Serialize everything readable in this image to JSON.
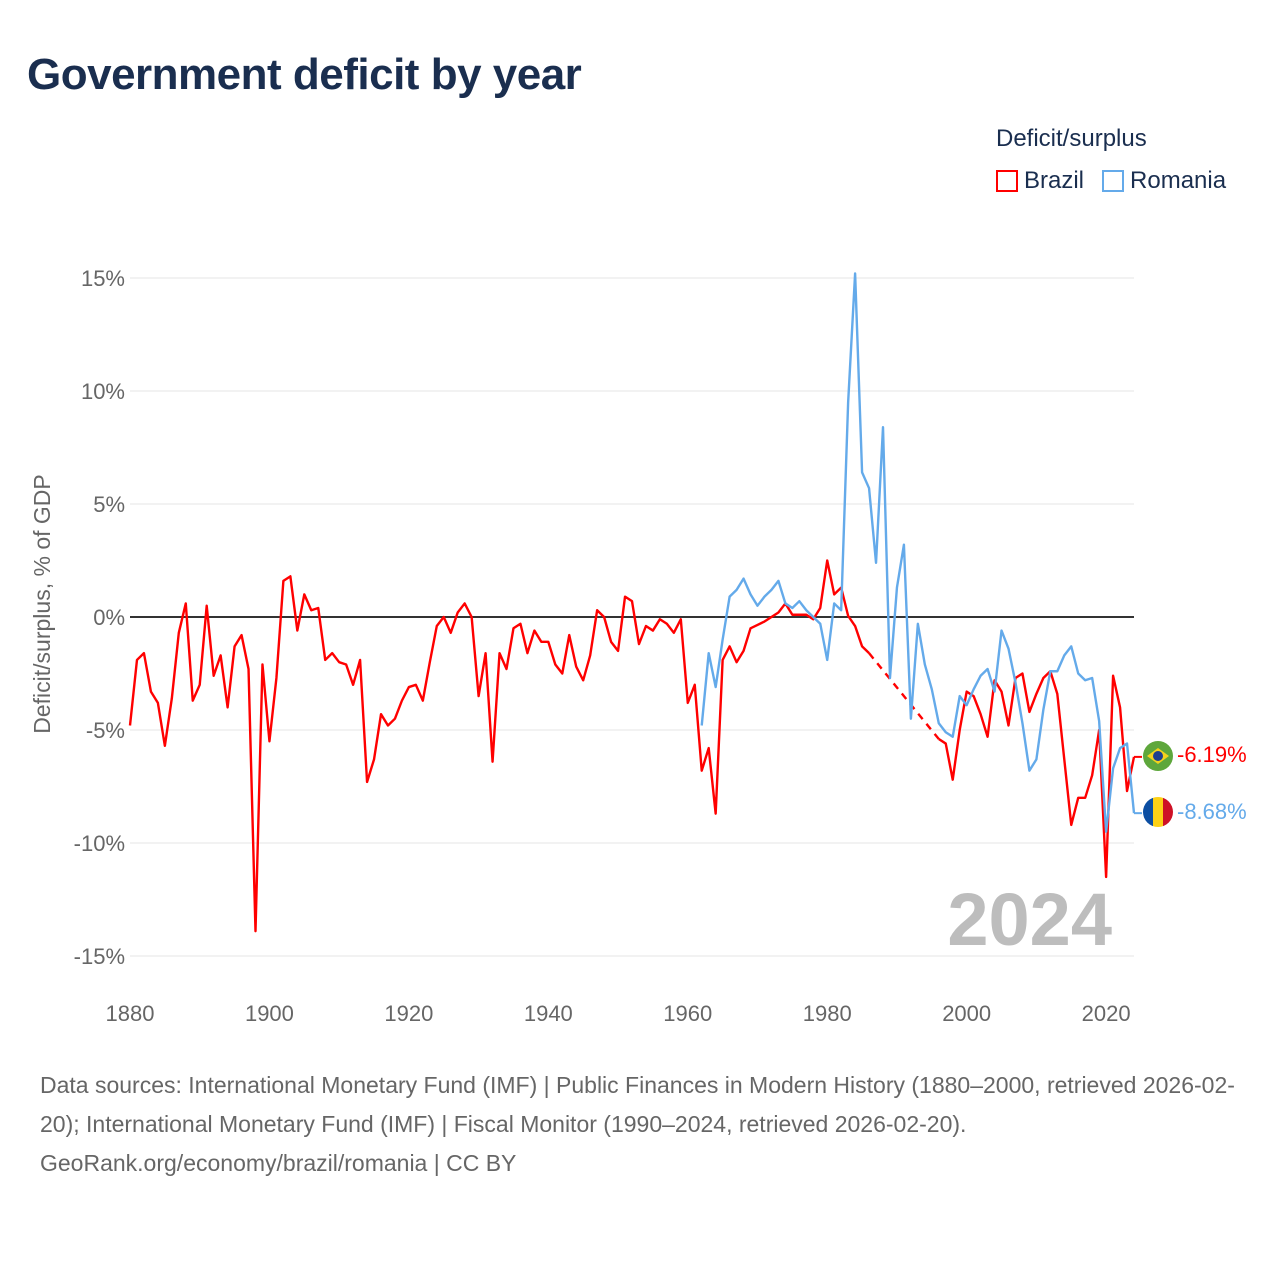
{
  "title": "Government deficit by year",
  "legend": {
    "title": "Deficit/surplus",
    "items": [
      {
        "label": "Brazil",
        "color": "#ff0000"
      },
      {
        "label": "Romania",
        "color": "#64aaea"
      }
    ]
  },
  "year_watermark": "2024",
  "end_labels": {
    "brazil": "-6.19%",
    "romania": "-8.68%"
  },
  "footer": {
    "sources": "Data sources: International Monetary Fund (IMF) | Public Finances in Modern History (1880–2000, retrieved 2026-02-20); International Monetary Fund (IMF) | Fiscal Monitor (1990–2024, retrieved 2026-02-20).",
    "credit": "GeoRank.org/economy/brazil/romania | CC BY"
  },
  "chart_data": {
    "type": "line",
    "title": "Government deficit by year",
    "xlabel": "",
    "ylabel": "Deficit/surplus, % of GDP",
    "xlim": [
      1880,
      2024
    ],
    "ylim": [
      -15,
      15
    ],
    "x_ticks": [
      1880,
      1900,
      1920,
      1940,
      1960,
      1980,
      2000,
      2020
    ],
    "x_tick_labels": [
      "1880",
      "1900",
      "1920",
      "1940",
      "1960",
      "1980",
      "2000",
      "2020"
    ],
    "y_ticks": [
      15,
      10,
      5,
      0,
      -5,
      -10,
      -15
    ],
    "y_tick_labels": [
      "15%",
      "10%",
      "5%",
      "0%",
      "-5%",
      "-10%",
      "-15%"
    ],
    "grid": true,
    "legend_position": "top-right",
    "series": [
      {
        "name": "Brazil",
        "color": "#ff0000",
        "start_year": 1880,
        "values": [
          -4.8,
          -1.9,
          -1.6,
          -3.3,
          -3.8,
          -5.7,
          -3.6,
          -0.7,
          0.6,
          -3.7,
          -3.0,
          0.5,
          -2.6,
          -1.7,
          -4.0,
          -1.3,
          -0.8,
          -2.3,
          -13.9,
          -2.1,
          -5.5,
          -2.7,
          1.6,
          1.8,
          -0.6,
          1.0,
          0.3,
          0.4,
          -1.9,
          -1.6,
          -2.0,
          -2.1,
          -3.0,
          -1.9,
          -7.3,
          -6.3,
          -4.3,
          -4.8,
          -4.5,
          -3.7,
          -3.1,
          -3.0,
          -3.7,
          -2.0,
          -0.4,
          0.0,
          -0.7,
          0.2,
          0.6,
          0.0,
          -3.5,
          -1.6,
          -6.4,
          -1.6,
          -2.3,
          -0.5,
          -0.3,
          -1.6,
          -0.6,
          -1.1,
          -1.1,
          -2.1,
          -2.5,
          -0.8,
          -2.2,
          -2.8,
          -1.7,
          0.3,
          0.0,
          -1.1,
          -1.5,
          0.9,
          0.7,
          -1.2,
          -0.4,
          -0.6,
          -0.1,
          -0.3,
          -0.7,
          -0.1,
          -3.8,
          -3.0,
          -6.8,
          -5.8,
          -8.7,
          -1.9,
          -1.3,
          -2.0,
          -1.5,
          -0.5,
          -0.35,
          -0.2,
          0.0,
          0.2,
          0.6,
          0.1,
          0.1,
          0.1,
          -0.1,
          0.4,
          2.5,
          1.0,
          1.3,
          0.05,
          -0.4,
          -1.3,
          -1.6,
          null,
          null,
          null,
          null,
          null,
          null,
          null,
          null,
          null,
          -5.4,
          -5.6,
          -7.2,
          -5.0,
          -3.3,
          -3.5,
          -4.3,
          -5.3,
          -2.8,
          -3.3,
          -4.8,
          -2.7,
          -2.5,
          -4.2,
          -3.4,
          -2.7,
          -2.4,
          -3.4,
          -6.3,
          -9.2,
          -8.0,
          -8.0,
          -7.0,
          -5.0,
          -11.5,
          -2.6,
          -4.0,
          -7.7,
          -6.19
        ]
      },
      {
        "name": "Romania",
        "color": "#64aaea",
        "start_year": 1962,
        "values": [
          -4.8,
          -1.6,
          -3.1,
          -1.0,
          0.9,
          1.2,
          1.7,
          1.0,
          0.5,
          0.9,
          1.2,
          1.6,
          0.6,
          0.4,
          0.7,
          0.3,
          0.0,
          -0.3,
          -1.9,
          0.6,
          0.3,
          9.5,
          15.2,
          6.4,
          5.7,
          2.4,
          8.4,
          -2.7,
          1.3,
          3.2,
          -4.5,
          -0.3,
          -2.1,
          -3.2,
          -4.7,
          -5.1,
          -5.3,
          -3.5,
          -3.9,
          -3.2,
          -2.6,
          -2.3,
          -3.3,
          -0.6,
          -1.4,
          -2.9,
          -4.7,
          -6.8,
          -6.3,
          -4.1,
          -2.4,
          -2.4,
          -1.7,
          -1.3,
          -2.5,
          -2.8,
          -2.7,
          -4.6,
          -9.5,
          -6.7,
          -5.8,
          -5.6,
          -8.68
        ]
      }
    ]
  }
}
